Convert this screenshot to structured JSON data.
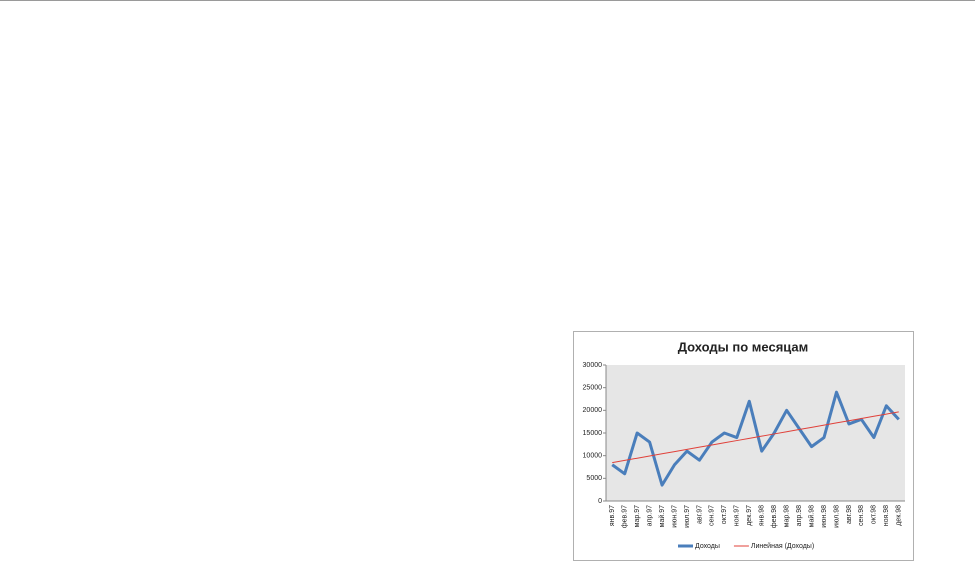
{
  "chart_data": {
    "type": "line",
    "title": "Доходы по месяцам",
    "categories": [
      "янв.97",
      "фев.97",
      "мар.97",
      "апр.97",
      "май.97",
      "июн.97",
      "июл.97",
      "авг.97",
      "сен.97",
      "окт.97",
      "ноя.97",
      "дек.97",
      "янв.98",
      "фев.98",
      "мар.98",
      "апр.98",
      "май.98",
      "июн.98",
      "июл.98",
      "авг.98",
      "сен.98",
      "окт.98",
      "ноя.98",
      "дек.98"
    ],
    "series": [
      {
        "name": "Доходы",
        "color": "#4a7ebb",
        "values": [
          8000,
          6000,
          15000,
          13000,
          3500,
          8000,
          11000,
          9000,
          13000,
          15000,
          14000,
          22000,
          11000,
          15000,
          20000,
          16000,
          12000,
          14000,
          24000,
          17000,
          18000,
          14000,
          21000,
          18000
        ]
      },
      {
        "name": "Линейная (Доходы)",
        "color": "#e0413a",
        "trendline": "linear"
      }
    ],
    "ylim": [
      0,
      30000
    ],
    "yticks": [
      0,
      5000,
      10000,
      15000,
      20000,
      25000,
      30000
    ],
    "grid": false,
    "legend": "bottom"
  }
}
